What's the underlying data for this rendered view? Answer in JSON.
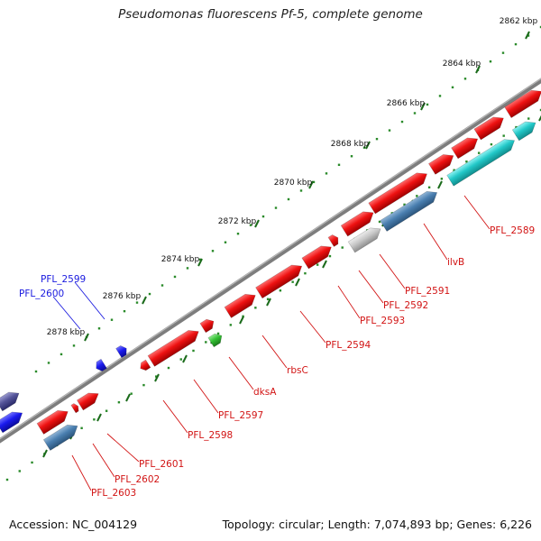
{
  "title": "Pseudomonas fluorescens Pf-5, complete genome",
  "footer": {
    "accession": "Accession: NC_004129",
    "summary": "Topology: circular; Length: 7,074,893 bp; Genes: 6,226"
  },
  "colors": {
    "backbone": "#7d7d7d",
    "label_red": "#d21414",
    "label_blue": "#1a1adf",
    "gene_red": "#ee1111",
    "gene_cyan": "#22c8c8",
    "gene_steel": "#4a7fb0",
    "gene_grey": "#c8c8c8",
    "gene_green": "#33c033",
    "gene_blue": "#1a1aee",
    "gene_purple": "#55559a",
    "tick": "#2a8a2a"
  },
  "scale": {
    "ticks": [
      "2862 kbp",
      "2864 kbp",
      "2866 kbp",
      "2868 kbp",
      "2870 kbp",
      "2872 kbp",
      "2874 kbp",
      "2876 kbp",
      "2878 kbp"
    ]
  },
  "gene_labels": [
    {
      "text": "PFL_2589",
      "color": "red"
    },
    {
      "text": "ilvB",
      "color": "red"
    },
    {
      "text": "PFL_2591",
      "color": "red"
    },
    {
      "text": "PFL_2592",
      "color": "red"
    },
    {
      "text": "PFL_2593",
      "color": "red"
    },
    {
      "text": "PFL_2594",
      "color": "red"
    },
    {
      "text": "rbsC",
      "color": "red"
    },
    {
      "text": "dksA",
      "color": "red"
    },
    {
      "text": "PFL_2597",
      "color": "red"
    },
    {
      "text": "PFL_2598",
      "color": "red"
    },
    {
      "text": "PFL_2601",
      "color": "red"
    },
    {
      "text": "PFL_2602",
      "color": "red"
    },
    {
      "text": "PFL_2603",
      "color": "red"
    },
    {
      "text": "PFL_2599",
      "color": "blue"
    },
    {
      "text": "PFL_2600",
      "color": "blue"
    }
  ]
}
